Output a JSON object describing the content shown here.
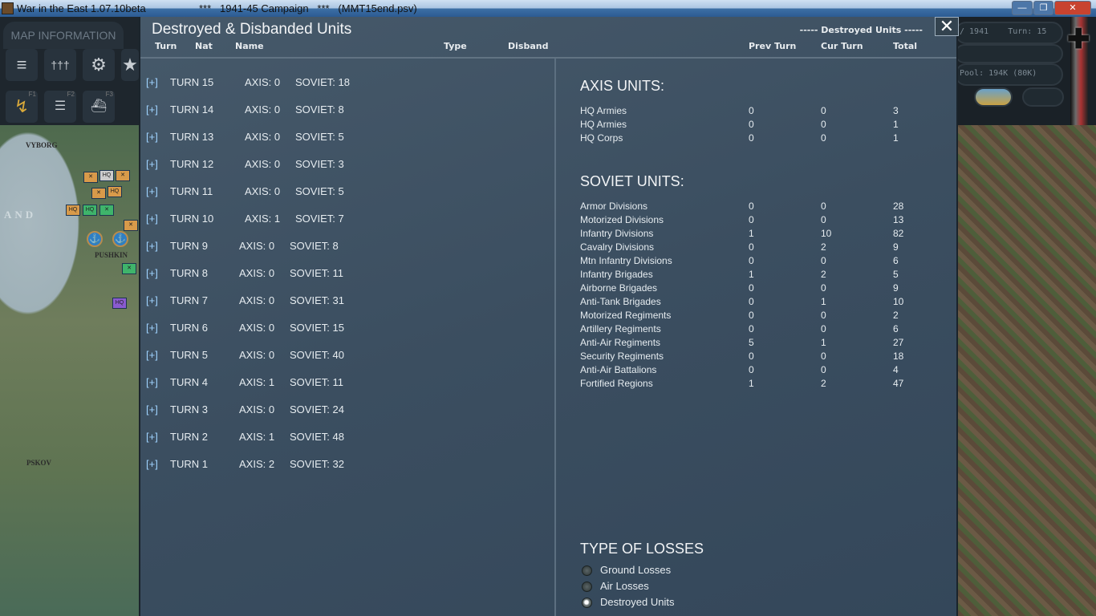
{
  "window": {
    "title": "War in the East 1.07.10beta",
    "campaign": "***   1941-45 Campaign   ***   (MMT15end.psv)",
    "min": "—",
    "max": "❐",
    "close": "✕"
  },
  "left_panel": {
    "tab": "MAP INFORMATION",
    "icons": [
      "tank-icon",
      "infantry-icon",
      "gear-icon",
      "star-icon"
    ],
    "fkeys": [
      "F1",
      "F2",
      "F3"
    ],
    "map_labels": [
      "VYBORG",
      "AND",
      "PUSHKIN",
      "PSKOV"
    ]
  },
  "hud": {
    "date": "/ 1941",
    "turn": "Turn: 15",
    "pool": "Pool:  194K (80K)"
  },
  "dialog": {
    "title": "Destroyed & Disbanded Units",
    "left_headers": [
      "Turn",
      "Nat",
      "Name",
      "Type",
      "Disband"
    ],
    "right_caption": "----- Destroyed Units -----",
    "right_headers": [
      "Prev Turn",
      "Cur Turn",
      "Total"
    ],
    "close_label": "✕",
    "turns": [
      {
        "expand": "[+]",
        "turn": "TURN 15",
        "axis": "AXIS: 0",
        "soviet": "SOVIET: 18"
      },
      {
        "expand": "[+]",
        "turn": "TURN 14",
        "axis": "AXIS: 0",
        "soviet": "SOVIET: 8"
      },
      {
        "expand": "[+]",
        "turn": "TURN 13",
        "axis": "AXIS: 0",
        "soviet": "SOVIET: 5"
      },
      {
        "expand": "[+]",
        "turn": "TURN 12",
        "axis": "AXIS: 0",
        "soviet": "SOVIET: 3"
      },
      {
        "expand": "[+]",
        "turn": "TURN 11",
        "axis": "AXIS: 0",
        "soviet": "SOVIET: 5"
      },
      {
        "expand": "[+]",
        "turn": "TURN 10",
        "axis": "AXIS: 1",
        "soviet": "SOVIET: 7"
      },
      {
        "expand": "[+]",
        "turn": "TURN 9",
        "axis": "AXIS: 0",
        "soviet": "SOVIET: 8"
      },
      {
        "expand": "[+]",
        "turn": "TURN 8",
        "axis": "AXIS: 0",
        "soviet": "SOVIET: 11"
      },
      {
        "expand": "[+]",
        "turn": "TURN 7",
        "axis": "AXIS: 0",
        "soviet": "SOVIET: 31"
      },
      {
        "expand": "[+]",
        "turn": "TURN 6",
        "axis": "AXIS: 0",
        "soviet": "SOVIET: 15"
      },
      {
        "expand": "[+]",
        "turn": "TURN 5",
        "axis": "AXIS: 0",
        "soviet": "SOVIET: 40"
      },
      {
        "expand": "[+]",
        "turn": "TURN 4",
        "axis": "AXIS: 1",
        "soviet": "SOVIET: 11"
      },
      {
        "expand": "[+]",
        "turn": "TURN 3",
        "axis": "AXIS: 0",
        "soviet": "SOVIET: 24"
      },
      {
        "expand": "[+]",
        "turn": "TURN 2",
        "axis": "AXIS: 1",
        "soviet": "SOVIET: 48"
      },
      {
        "expand": "[+]",
        "turn": "TURN 1",
        "axis": "AXIS: 2",
        "soviet": "SOVIET: 32"
      }
    ],
    "axis_title": "AXIS UNITS:",
    "axis_units": [
      {
        "name": "HQ Armies",
        "prev": "0",
        "cur": "0",
        "total": "3"
      },
      {
        "name": "HQ Armies",
        "prev": "0",
        "cur": "0",
        "total": "1"
      },
      {
        "name": "HQ Corps",
        "prev": "0",
        "cur": "0",
        "total": "1"
      }
    ],
    "soviet_title": "SOVIET UNITS:",
    "soviet_units": [
      {
        "name": "Armor Divisions",
        "prev": "0",
        "cur": "0",
        "total": "28"
      },
      {
        "name": "Motorized Divisions",
        "prev": "0",
        "cur": "0",
        "total": "13"
      },
      {
        "name": "Infantry Divisions",
        "prev": "1",
        "cur": "10",
        "total": "82"
      },
      {
        "name": "Cavalry Divisions",
        "prev": "0",
        "cur": "2",
        "total": "9"
      },
      {
        "name": "Mtn Infantry Divisions",
        "prev": "0",
        "cur": "0",
        "total": "6"
      },
      {
        "name": "Infantry Brigades",
        "prev": "1",
        "cur": "2",
        "total": "5"
      },
      {
        "name": "Airborne Brigades",
        "prev": "0",
        "cur": "0",
        "total": "9"
      },
      {
        "name": "Anti-Tank Brigades",
        "prev": "0",
        "cur": "1",
        "total": "10"
      },
      {
        "name": "Motorized Regiments",
        "prev": "0",
        "cur": "0",
        "total": "2"
      },
      {
        "name": "Artillery Regiments",
        "prev": "0",
        "cur": "0",
        "total": "6"
      },
      {
        "name": "Anti-Air Regiments",
        "prev": "5",
        "cur": "1",
        "total": "27"
      },
      {
        "name": "Security Regiments",
        "prev": "0",
        "cur": "0",
        "total": "18"
      },
      {
        "name": "Anti-Air Battalions",
        "prev": "0",
        "cur": "0",
        "total": "4"
      },
      {
        "name": "Fortified Regions",
        "prev": "1",
        "cur": "2",
        "total": "47"
      }
    ],
    "losses_title": "TYPE OF LOSSES",
    "loss_types": [
      {
        "label": "Ground Losses",
        "selected": false
      },
      {
        "label": "Air Losses",
        "selected": false
      },
      {
        "label": "Destroyed Units",
        "selected": true
      }
    ]
  }
}
